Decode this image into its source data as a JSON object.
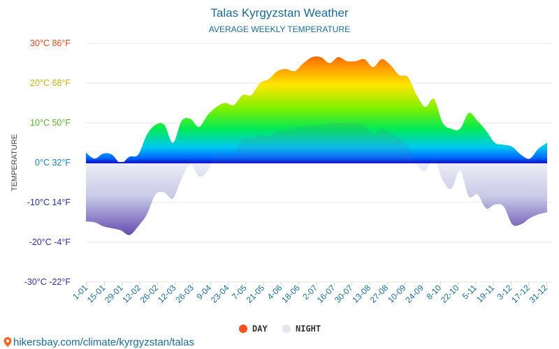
{
  "chart_data": {
    "type": "area",
    "title": "Talas Kyrgyzstan Weather",
    "subtitle": "AVERAGE WEEKLY TEMPERATURE",
    "ylabel": "TEMPERATURE",
    "ylim": [
      -30,
      30
    ],
    "y_ticks": [
      {
        "value": 30,
        "label": "30°C 86°F",
        "color": "#d9481e"
      },
      {
        "value": 20,
        "label": "20°C 68°F",
        "color": "#c4b11f"
      },
      {
        "value": 10,
        "label": "10°C 50°F",
        "color": "#58ad32"
      },
      {
        "value": 0,
        "label": "0°C 32°F",
        "color": "#1b7fb8"
      },
      {
        "value": -10,
        "label": "-10°C 14°F",
        "color": "#2a2f9a"
      },
      {
        "value": -20,
        "label": "-20°C -4°F",
        "color": "#2a2f9a"
      },
      {
        "value": -30,
        "label": "-30°C -22°F",
        "color": "#2a2f9a"
      }
    ],
    "x_tick_labels": [
      "1-01",
      "15-01",
      "29-01",
      "12-02",
      "26-02",
      "12-03",
      "26-03",
      "9-04",
      "23-04",
      "7-05",
      "21-05",
      "4-06",
      "18-06",
      "2-07",
      "16-07",
      "30-07",
      "13-08",
      "27-08",
      "10-09",
      "24-09",
      "8-10",
      "22-10",
      "5-11",
      "19-11",
      "3-12",
      "17-12",
      "31-12"
    ],
    "series": [
      {
        "name": "DAY",
        "color": "#f4511e",
        "values": [
          2.5,
          1,
          2.3,
          2,
          -0.2,
          1.5,
          2,
          7,
          9.5,
          9.5,
          5,
          10.5,
          11,
          9,
          12,
          14,
          15,
          14.5,
          17,
          17,
          20,
          21,
          23,
          23.5,
          23,
          25,
          26.5,
          26.5,
          25,
          26.5,
          25.5,
          25.5,
          26,
          24,
          26,
          24.5,
          22,
          21.5,
          17,
          14,
          16,
          10,
          8.5,
          8.5,
          12.5,
          10.5,
          8,
          5,
          4.5,
          4,
          2,
          1,
          3.5,
          5
        ]
      },
      {
        "name": "NIGHT",
        "color": "#e8eaf6",
        "values": [
          -14.8,
          -15,
          -16,
          -16.5,
          -17,
          -18.2,
          -16,
          -13,
          -8,
          -7.5,
          -9,
          -4,
          -0.5,
          -3.5,
          -2,
          2,
          1.5,
          2,
          6,
          6,
          7,
          6.5,
          8,
          8,
          9,
          9,
          9.5,
          9.5,
          10,
          10,
          10,
          10,
          9.5,
          7,
          8.5,
          7.5,
          6,
          4,
          -0.5,
          -2,
          1,
          -4.5,
          -6.5,
          -2,
          -8.5,
          -8,
          -11.5,
          -10.5,
          -11,
          -15.5,
          -15.5,
          -14,
          -13,
          -12.5
        ]
      }
    ]
  },
  "legend": {
    "day_label": "DAY",
    "night_label": "NIGHT"
  },
  "source_text": "hikersbay.com/climate/kyrgyzstan/talas"
}
